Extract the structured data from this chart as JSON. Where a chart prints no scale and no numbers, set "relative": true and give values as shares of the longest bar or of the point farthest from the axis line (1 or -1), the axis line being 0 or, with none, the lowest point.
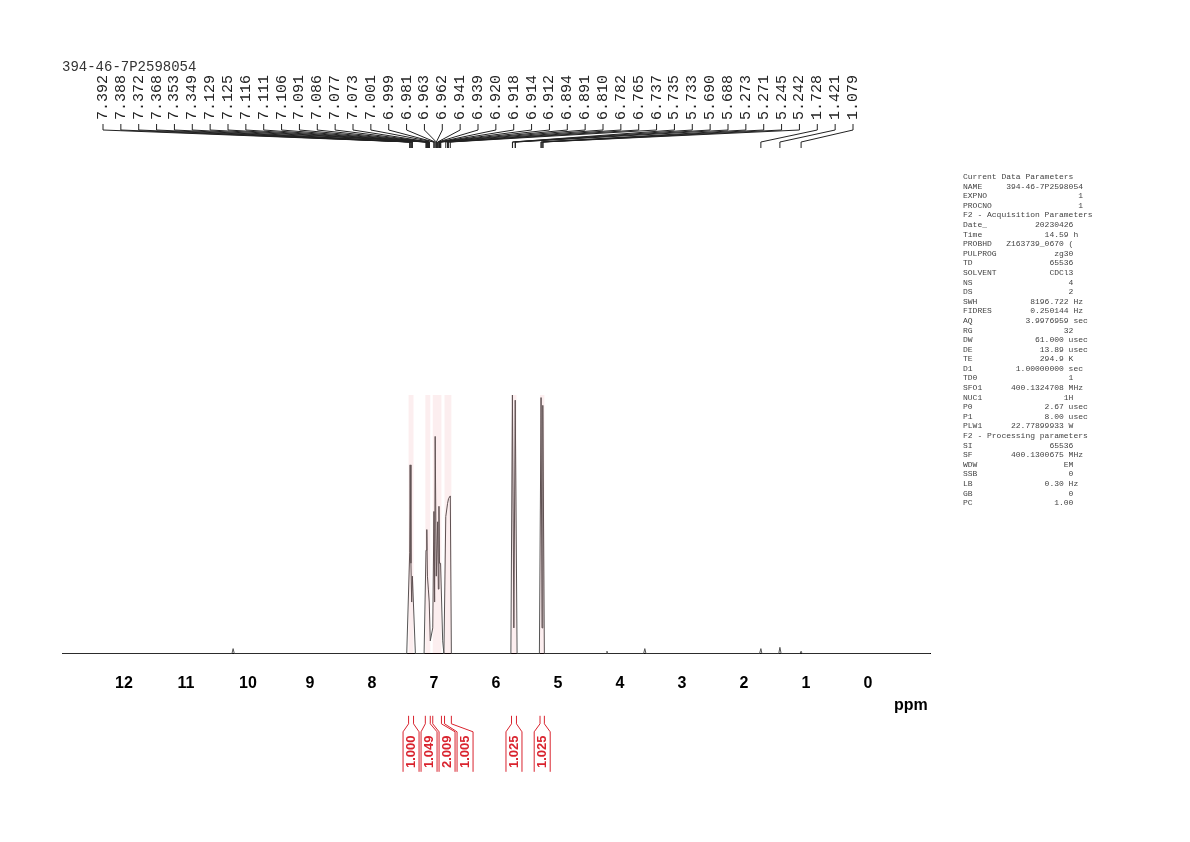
{
  "chart_data": {
    "type": "line",
    "title": "394-46-7P2598054",
    "xlabel": "ppm",
    "relative": true,
    "xlim": [
      13,
      -1
    ],
    "xticks": [
      12,
      11,
      10,
      9,
      8,
      7,
      6,
      5,
      4,
      3,
      2,
      1,
      0
    ],
    "grid": false,
    "legend": false,
    "marker": "none",
    "line_style": "solid",
    "series": [
      {
        "color": "#555555",
        "x": [
          13,
          10.26,
          10.24,
          10.22,
          7.44,
          7.392,
          7.385,
          7.372,
          7.36,
          7.349,
          7.3,
          7.16,
          7.129,
          7.116,
          7.106,
          7.091,
          7.077,
          7.06,
          7.02,
          7.001,
          6.99,
          6.981,
          6.963,
          6.941,
          6.93,
          6.92,
          6.912,
          6.894,
          6.86,
          6.84,
          6.81,
          6.782,
          6.765,
          6.737,
          6.72,
          6.65,
          5.76,
          5.735,
          5.712,
          5.69,
          5.66,
          5.3,
          5.273,
          5.258,
          5.245,
          5.22,
          4.22,
          4.21,
          4.2,
          3.62,
          3.6,
          3.58,
          1.75,
          1.728,
          1.71,
          1.44,
          1.421,
          1.4,
          1.1,
          1.079,
          1.06,
          -1
        ],
        "values": [
          0,
          0,
          0.02,
          0,
          0,
          0.39,
          0.73,
          0.35,
          0.2,
          0.3,
          0,
          0,
          0.4,
          0.48,
          0.3,
          0.25,
          0.2,
          0.05,
          0.1,
          0.55,
          0.2,
          0.84,
          0.3,
          0.51,
          0.25,
          0.57,
          0.35,
          0.35,
          0.05,
          0,
          0.53,
          0.58,
          0.6,
          0.61,
          0,
          0,
          0,
          1,
          0.1,
          0.98,
          0,
          0,
          0.99,
          0.1,
          0.96,
          0,
          0,
          0.01,
          0,
          0,
          0.02,
          0,
          0,
          0.02,
          0,
          0,
          0.025,
          0,
          0,
          0.01,
          0,
          0
        ]
      }
    ],
    "bands": [
      {
        "axis": "x",
        "from": 7.41,
        "to": 7.33,
        "label": "1.000",
        "color": "#d9232e"
      },
      {
        "axis": "x",
        "from": 7.14,
        "to": 7.06,
        "label": "1.049",
        "color": "#d9232e"
      },
      {
        "axis": "x",
        "from": 7.02,
        "to": 6.88,
        "label": "2.009",
        "color": "#d9232e"
      },
      {
        "axis": "x",
        "from": 6.83,
        "to": 6.72,
        "label": "1.005",
        "color": "#d9232e"
      },
      {
        "axis": "x",
        "from": 5.75,
        "to": 5.67,
        "label": "1.025",
        "color": "#d9232e"
      },
      {
        "axis": "x",
        "from": 5.29,
        "to": 5.22,
        "label": "1.025",
        "color": "#d9232e"
      }
    ],
    "annotations": [
      {
        "text": "7.392",
        "x": 7.392
      },
      {
        "text": "7.388",
        "x": 7.388
      },
      {
        "text": "7.372",
        "x": 7.372
      },
      {
        "text": "7.368",
        "x": 7.368
      },
      {
        "text": "7.353",
        "x": 7.353
      },
      {
        "text": "7.349",
        "x": 7.349
      },
      {
        "text": "7.129",
        "x": 7.129
      },
      {
        "text": "7.125",
        "x": 7.125
      },
      {
        "text": "7.116",
        "x": 7.116
      },
      {
        "text": "7.111",
        "x": 7.111
      },
      {
        "text": "7.106",
        "x": 7.106
      },
      {
        "text": "7.091",
        "x": 7.091
      },
      {
        "text": "7.086",
        "x": 7.086
      },
      {
        "text": "7.077",
        "x": 7.077
      },
      {
        "text": "7.073",
        "x": 7.073
      },
      {
        "text": "7.001",
        "x": 7.001
      },
      {
        "text": "6.999",
        "x": 6.999
      },
      {
        "text": "6.981",
        "x": 6.981
      },
      {
        "text": "6.963",
        "x": 6.963
      },
      {
        "text": "6.962",
        "x": 6.962
      },
      {
        "text": "6.941",
        "x": 6.941
      },
      {
        "text": "6.939",
        "x": 6.939
      },
      {
        "text": "6.920",
        "x": 6.92
      },
      {
        "text": "6.918",
        "x": 6.918
      },
      {
        "text": "6.914",
        "x": 6.914
      },
      {
        "text": "6.912",
        "x": 6.912
      },
      {
        "text": "6.894",
        "x": 6.894
      },
      {
        "text": "6.891",
        "x": 6.891
      },
      {
        "text": "6.810",
        "x": 6.81
      },
      {
        "text": "6.782",
        "x": 6.782
      },
      {
        "text": "6.765",
        "x": 6.765
      },
      {
        "text": "6.737",
        "x": 6.737
      },
      {
        "text": "5.735",
        "x": 5.735
      },
      {
        "text": "5.733",
        "x": 5.733
      },
      {
        "text": "5.690",
        "x": 5.69
      },
      {
        "text": "5.688",
        "x": 5.688
      },
      {
        "text": "5.273",
        "x": 5.273
      },
      {
        "text": "5.271",
        "x": 5.271
      },
      {
        "text": "5.245",
        "x": 5.245
      },
      {
        "text": "5.242",
        "x": 5.242
      },
      {
        "text": "1.728",
        "x": 1.728
      },
      {
        "text": "1.421",
        "x": 1.421
      },
      {
        "text": "1.079",
        "x": 1.079
      },
      "Current Data Parameters",
      "NAME     394-46-7P2598054",
      "EXPNO                   1",
      "PROCNO                  1",
      "F2 - Acquisition Parameters",
      "Date_          20230426",
      "Time             14.59 h",
      "PROBHD   Z163739_0670 (",
      "PULPROG            zg30",
      "TD                65536",
      "SOLVENT           CDCl3",
      "NS                    4",
      "DS                    2",
      "SWH           8196.722 Hz",
      "FIDRES        0.250144 Hz",
      "AQ           3.9976959 sec",
      "RG                   32",
      "DW             61.000 usec",
      "DE              13.89 usec",
      "TE              294.9 K",
      "D1         1.00000000 sec",
      "TD0                   1",
      "SFO1      400.1324708 MHz",
      "NUC1                 1H",
      "P0               2.67 usec",
      "P1               8.00 usec",
      "PLW1      22.77899933 W",
      "F2 - Processing parameters",
      "SI                65536",
      "SF        400.1300675 MHz",
      "WDW                  EM",
      "SSB                   0",
      "LB               0.30 Hz",
      "GB                    0",
      "PC                 1.00"
    ]
  }
}
